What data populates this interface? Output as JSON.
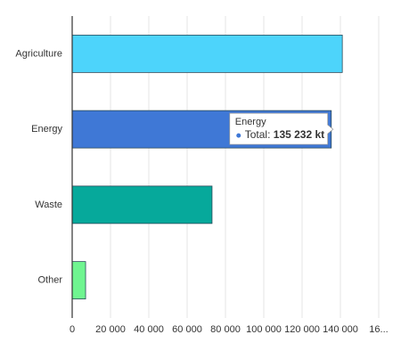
{
  "chart_data": {
    "type": "hbar",
    "categories": [
      "Agriculture",
      "Energy",
      "Waste",
      "Other"
    ],
    "values": [
      141000,
      135232,
      73000,
      7000
    ],
    "value_labels": [
      null,
      "135 232 kt",
      null,
      null
    ],
    "colors": [
      "#4dd4fb",
      "#3f78d6",
      "#06a99b",
      "#6ff590"
    ],
    "xlim": [
      0,
      160000
    ],
    "xticks": [
      0,
      {
        "value": 20000,
        "label": "20 000"
      },
      {
        "value": 40000,
        "label": "40 000"
      },
      {
        "value": 60000,
        "label": "60 000"
      },
      {
        "value": 80000,
        "label": "80 000"
      },
      {
        "value": 100000,
        "label": "100 000"
      },
      {
        "value": 120000,
        "label": "120 000"
      },
      {
        "value": 140000,
        "label": "140 000"
      },
      {
        "value": 160000,
        "label": "16..."
      }
    ],
    "grid": true,
    "tooltip": {
      "index": 1,
      "label": "Total:"
    }
  }
}
